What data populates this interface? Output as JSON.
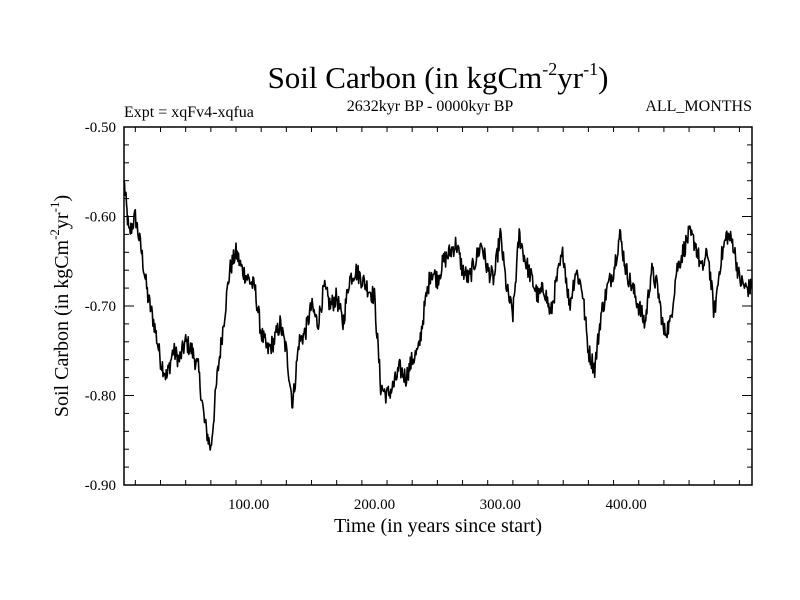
{
  "chart_data": {
    "type": "line",
    "title": "Soil Carbon (in kgCm",
    "title_sup1": "-2",
    "title_mid": "yr",
    "title_sup2": "-1",
    "title_end": ")",
    "subtitle_left": "Expt = xqFv4-xqfua",
    "subtitle_center": "2632kyr BP - 0000kyr BP",
    "subtitle_right": "ALL_MONTHS",
    "xlabel": "Time (in years since start)",
    "ylabel_parts": [
      "Soil Carbon (in kgCm",
      "-2",
      "yr",
      "-1",
      ")"
    ],
    "xlim": [
      1,
      500
    ],
    "ylim": [
      -0.9,
      -0.5
    ],
    "x_ticks": [
      100,
      200,
      300,
      400
    ],
    "x_tick_labels": [
      "100.00",
      "200.00",
      "300.00",
      "400.00"
    ],
    "y_ticks": [
      -0.5,
      -0.6,
      -0.7,
      -0.8,
      -0.9
    ],
    "y_tick_labels": [
      "-0.50",
      "-0.60",
      "-0.70",
      "-0.80",
      "-0.90"
    ],
    "series": [
      {
        "name": "Soil Carbon",
        "color": "#000000",
        "x": [
          1,
          5,
          10,
          15,
          20,
          25,
          30,
          35,
          40,
          45,
          50,
          55,
          60,
          65,
          70,
          75,
          80,
          85,
          90,
          95,
          100,
          105,
          110,
          115,
          120,
          125,
          130,
          135,
          140,
          145,
          150,
          155,
          160,
          165,
          170,
          175,
          180,
          185,
          190,
          195,
          200,
          205,
          210,
          215,
          220,
          225,
          230,
          235,
          240,
          245,
          250,
          255,
          260,
          265,
          270,
          275,
          280,
          285,
          290,
          295,
          300,
          305,
          310,
          315,
          320,
          325,
          330,
          335,
          340,
          345,
          350,
          355,
          360,
          365,
          370,
          375,
          380,
          385,
          390,
          395,
          400,
          405,
          410,
          415,
          420,
          425,
          430,
          435,
          440,
          445,
          450,
          455,
          460,
          465,
          470,
          475,
          480,
          485,
          490,
          495,
          500
        ],
        "values": [
          -0.56,
          -0.62,
          -0.6,
          -0.64,
          -0.69,
          -0.72,
          -0.76,
          -0.78,
          -0.75,
          -0.76,
          -0.74,
          -0.75,
          -0.77,
          -0.83,
          -0.86,
          -0.78,
          -0.72,
          -0.66,
          -0.64,
          -0.66,
          -0.67,
          -0.68,
          -0.73,
          -0.75,
          -0.74,
          -0.72,
          -0.75,
          -0.81,
          -0.74,
          -0.73,
          -0.7,
          -0.72,
          -0.68,
          -0.7,
          -0.69,
          -0.72,
          -0.67,
          -0.66,
          -0.67,
          -0.68,
          -0.69,
          -0.79,
          -0.8,
          -0.79,
          -0.77,
          -0.78,
          -0.76,
          -0.75,
          -0.7,
          -0.66,
          -0.67,
          -0.65,
          -0.64,
          -0.63,
          -0.66,
          -0.67,
          -0.65,
          -0.63,
          -0.66,
          -0.67,
          -0.62,
          -0.68,
          -0.71,
          -0.62,
          -0.65,
          -0.67,
          -0.69,
          -0.68,
          -0.71,
          -0.67,
          -0.64,
          -0.7,
          -0.66,
          -0.68,
          -0.75,
          -0.77,
          -0.71,
          -0.68,
          -0.66,
          -0.62,
          -0.66,
          -0.68,
          -0.7,
          -0.72,
          -0.66,
          -0.68,
          -0.73,
          -0.72,
          -0.66,
          -0.64,
          -0.62,
          -0.63,
          -0.66,
          -0.64,
          -0.71,
          -0.65,
          -0.62,
          -0.63,
          -0.67,
          -0.68,
          -0.68
        ]
      }
    ]
  }
}
